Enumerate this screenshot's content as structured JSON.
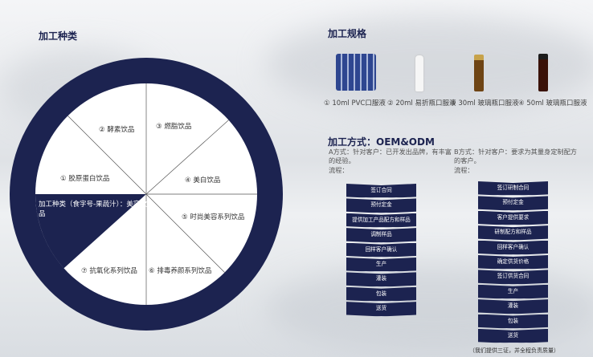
{
  "left_section": {
    "title": "加工种类",
    "center_label": "加工种类（食字号-果蔬汁）：美容饮品",
    "segments": [
      "① 胶原蛋白饮品",
      "② 酵素饮品",
      "③ 燃脂饮品",
      "④ 美白饮品",
      "⑤ 时尚美容系列饮品",
      "⑥ 排毒养颜系列饮品",
      "⑦ 抗氧化系列饮品"
    ]
  },
  "spec_section": {
    "title": "加工规格",
    "items": [
      "① 10ml PVC口服液",
      "② 20ml 易折瓶口服液",
      "③ 30ml 玻璃瓶口服液",
      "④ 50ml 玻璃瓶口服液"
    ]
  },
  "method_section": {
    "title": "加工方式：OEM&ODM",
    "a": {
      "desc": "A方式：针对客户：已开发出品牌，有丰富的经验。",
      "flow_label": "流程：",
      "steps": [
        "签订合同",
        "预付定金",
        "提供加工产品配方和样品",
        "调制样品",
        "回样客户确认",
        "生产",
        "灌装",
        "包装",
        "送货"
      ]
    },
    "b": {
      "desc": "B方式：针对客户：要求为其量身定制配方的客户。",
      "flow_label": "流程：",
      "steps": [
        "签订研制合同",
        "预付定金",
        "客户提供要求",
        "研制配方和样品",
        "回样客户确认",
        "确定供货价格",
        "签订供货合同",
        "生产",
        "灌装",
        "包装",
        "送货"
      ]
    },
    "note": "（我们提供三证，并全程负责质量）"
  },
  "colors": {
    "navy": "#1c2350",
    "white": "#ffffff"
  }
}
